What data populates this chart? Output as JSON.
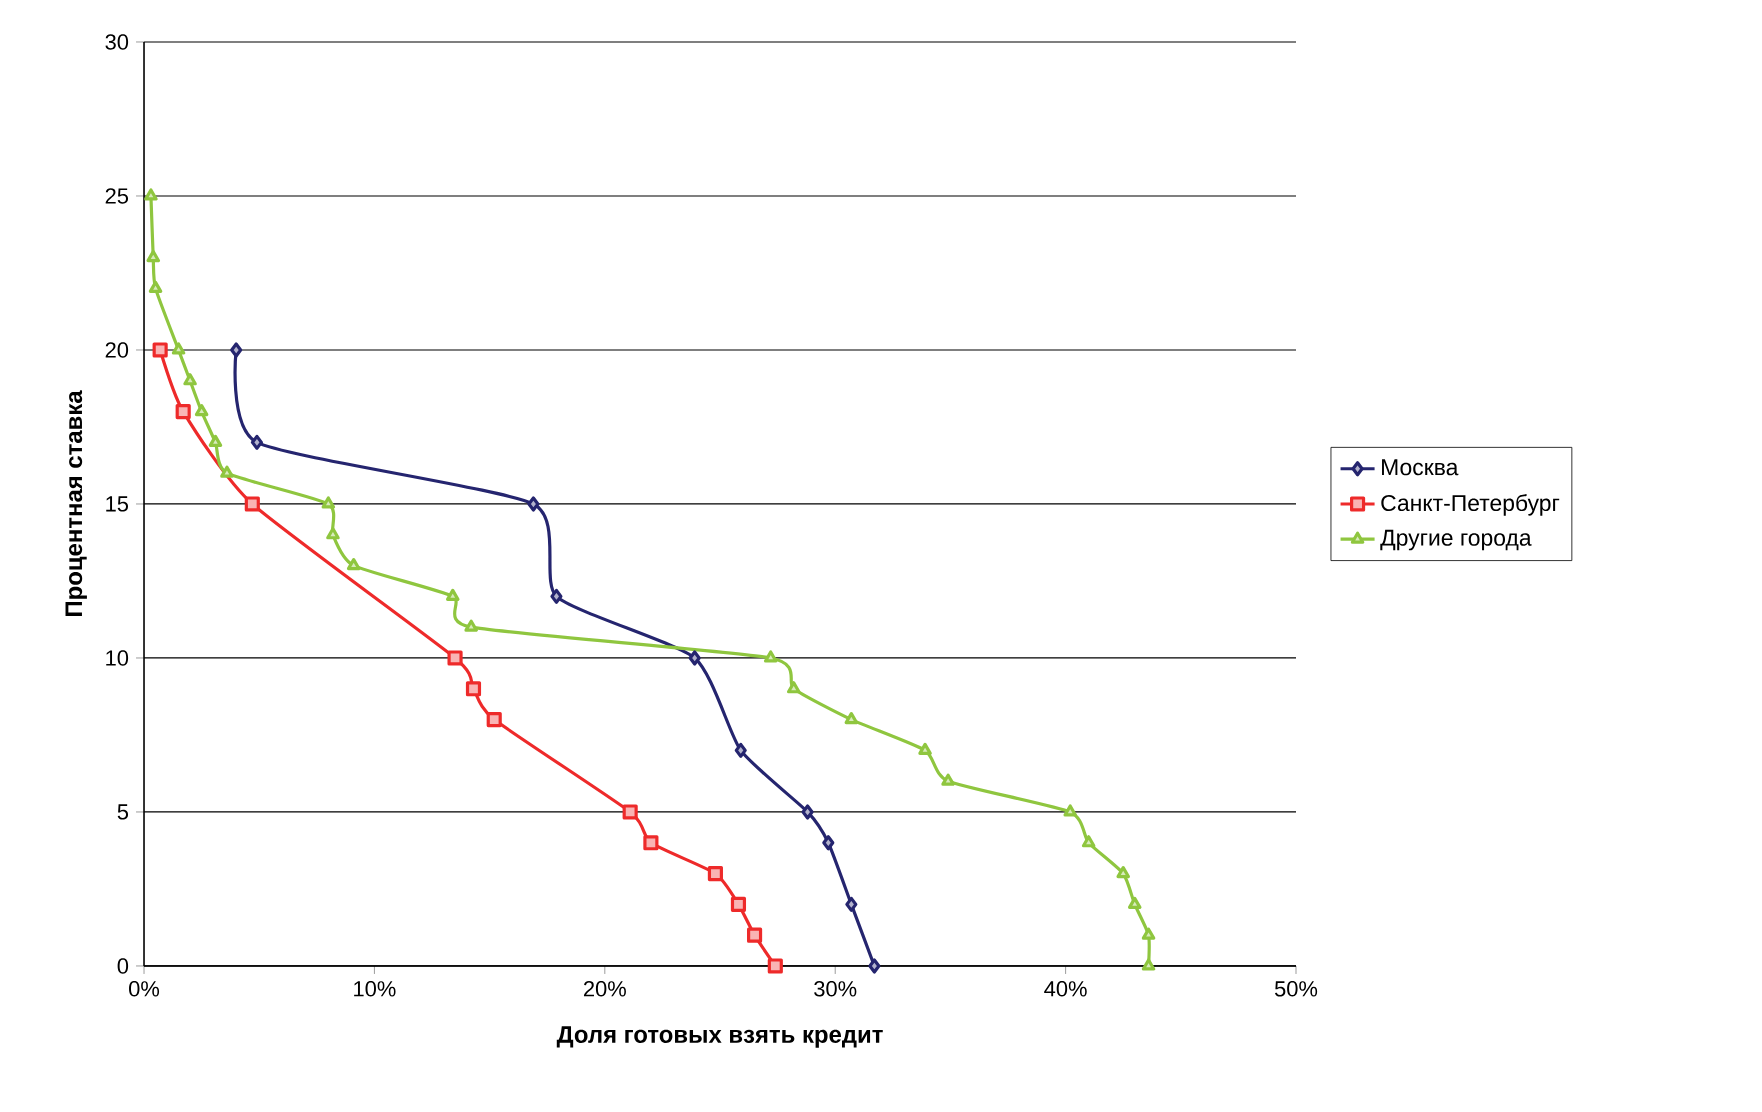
{
  "chart_data": {
    "type": "line",
    "xlabel": "Доля готовых взять кредит",
    "ylabel": "Процентная ставка",
    "xlim": [
      0,
      50
    ],
    "ylim": [
      0,
      30
    ],
    "xticks": [
      {
        "value": 0,
        "label": "0%"
      },
      {
        "value": 10,
        "label": "10%"
      },
      {
        "value": 20,
        "label": "20%"
      },
      {
        "value": 30,
        "label": "30%"
      },
      {
        "value": 40,
        "label": "40%"
      },
      {
        "value": 50,
        "label": "50%"
      }
    ],
    "yticks": [
      0,
      5,
      10,
      15,
      20,
      25,
      30
    ],
    "grid": "y",
    "legend": "right",
    "series": [
      {
        "name": "Москва",
        "color": "#25256f",
        "marker": "diamond",
        "x": [
          4.0,
          4.9,
          16.9,
          17.9,
          23.9,
          25.9,
          28.8,
          29.7,
          30.7,
          31.7
        ],
        "values": [
          20,
          17,
          15,
          12,
          10,
          7,
          5,
          4,
          2,
          0
        ]
      },
      {
        "name": "Санкт-Петербург",
        "color": "#ee2a2a",
        "marker": "square",
        "x": [
          0.7,
          1.7,
          4.7,
          13.5,
          14.3,
          15.2,
          21.1,
          22.0,
          24.8,
          25.8,
          26.5,
          27.4
        ],
        "values": [
          20,
          18,
          15,
          10,
          9,
          8,
          5,
          4,
          3,
          2,
          1,
          0
        ]
      },
      {
        "name": "Другие города",
        "color": "#8fc63f",
        "marker": "triangle",
        "x": [
          0.3,
          0.4,
          0.5,
          1.5,
          2.0,
          2.5,
          3.1,
          3.6,
          8.0,
          8.2,
          9.1,
          13.4,
          14.2,
          27.2,
          28.2,
          30.7,
          33.9,
          34.9,
          40.2,
          41.0,
          42.5,
          43.0,
          43.6,
          43.6
        ],
        "values": [
          25,
          23,
          22,
          20,
          19,
          18,
          17,
          16,
          15,
          14,
          13,
          12,
          11,
          10,
          9,
          8,
          7,
          6,
          5,
          4,
          3,
          2,
          1,
          0
        ]
      }
    ]
  }
}
